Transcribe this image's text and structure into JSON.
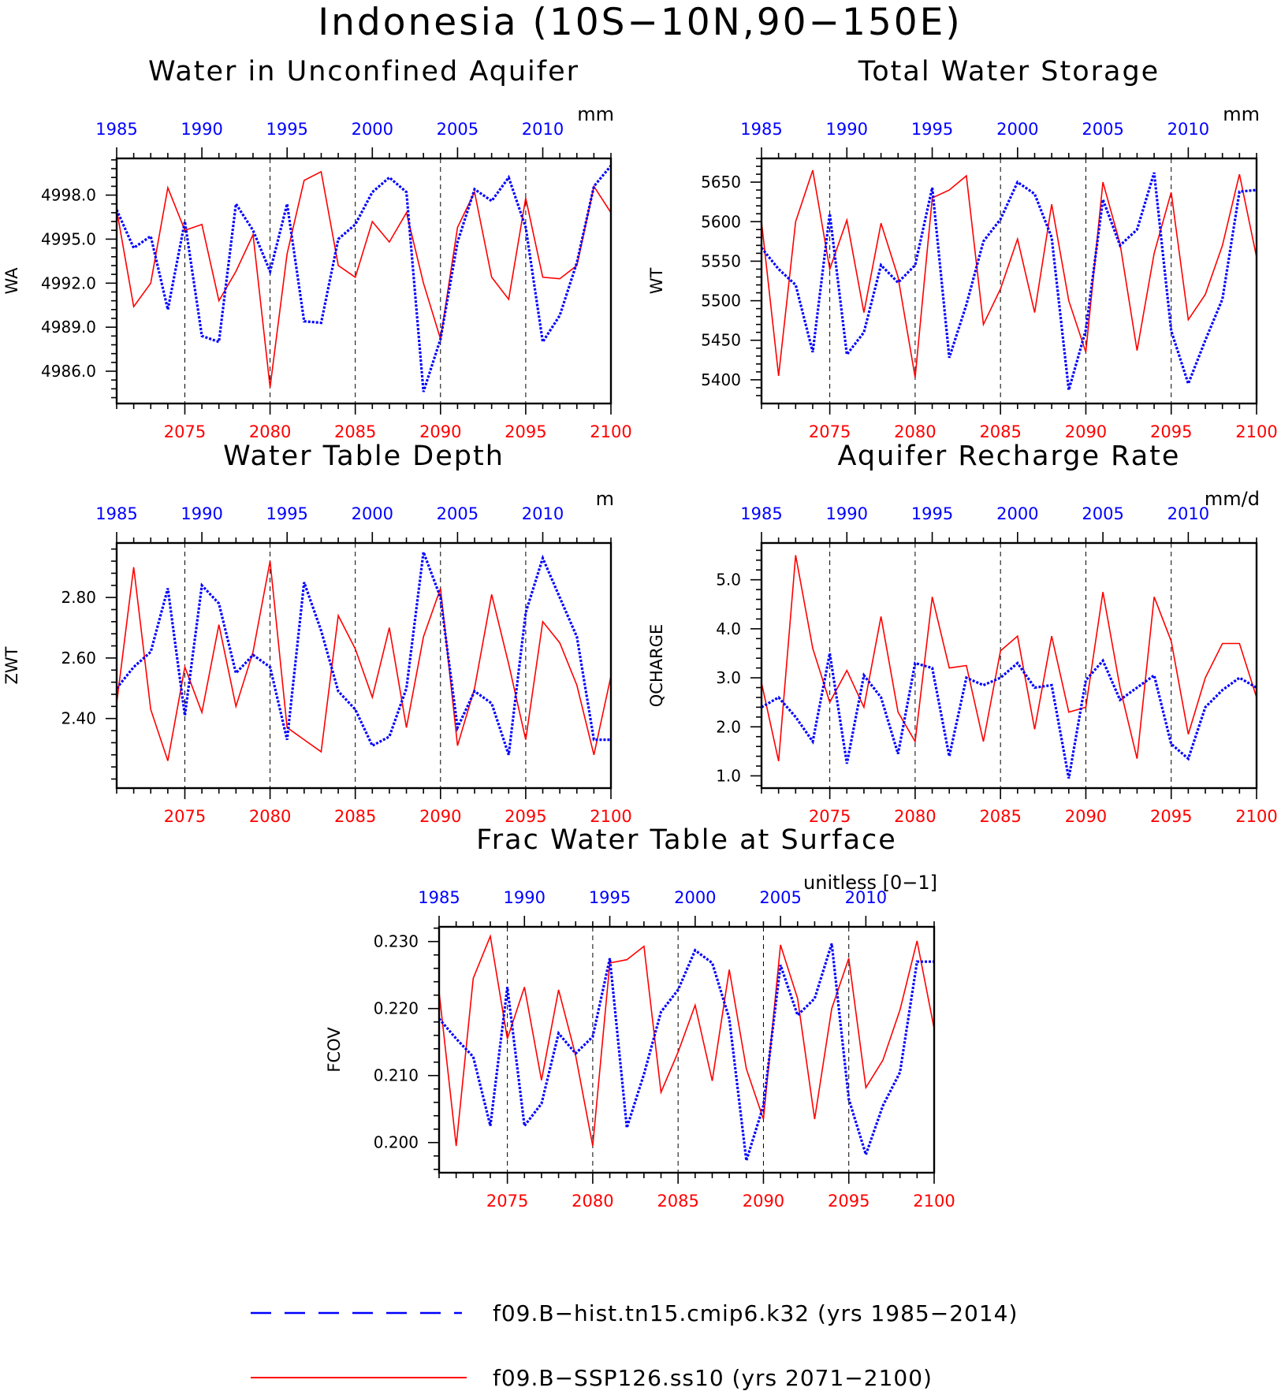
{
  "figure": {
    "title": "Indonesia (10S−10N,90−150E)"
  },
  "legend": {
    "items": [
      {
        "label": "f09.B−hist.tn15.cmip6.k32 (yrs 1985−2014)",
        "color": "#0000ff",
        "style": "dashed"
      },
      {
        "label": "f09.B−SSP126.ss10 (yrs 2071−2100)",
        "color": "#ff0000",
        "style": "solid"
      }
    ]
  },
  "chart_data": [
    {
      "type": "line",
      "title": "Water in Unconfined Aquifer",
      "ylabel": "WA",
      "units": "mm",
      "ylim": [
        4983.8,
        5000.5
      ],
      "yticks": [
        4986.0,
        4989.0,
        4992.0,
        4995.0,
        4998.0
      ],
      "ytick_labels": [
        "4986.0",
        "4989.0",
        "4992.0",
        "4995.0",
        "4998.0"
      ],
      "x_bottom": {
        "range": [
          2071,
          2100
        ],
        "ticks": [
          2075,
          2080,
          2085,
          2090,
          2095,
          2100
        ]
      },
      "x_top": {
        "range": [
          1985,
          2014
        ],
        "ticks": [
          1985,
          1990,
          1995,
          2000,
          2005,
          2010
        ]
      },
      "grid_x": [
        2075,
        2080,
        2085,
        2090,
        2095
      ],
      "series": [
        {
          "years": "2071−2100",
          "color": "#ff0000",
          "style": "solid",
          "values": [
            4997.0,
            4990.4,
            4992.0,
            4998.5,
            4995.6,
            4996.0,
            4990.8,
            4992.8,
            4995.3,
            4984.9,
            4994.0,
            4999.0,
            4999.6,
            4993.2,
            4992.4,
            4996.2,
            4994.8,
            4996.8,
            4992.0,
            4988.2,
            4995.8,
            4998.2,
            4992.4,
            4990.9,
            4997.8,
            4992.4,
            4992.3,
            4993.2,
            4998.6,
            4996.8
          ]
        },
        {
          "years": "1985−2014",
          "color": "#0000ff",
          "style": "dashed",
          "values": [
            4997.0,
            4994.4,
            4995.2,
            4990.2,
            4996.2,
            4988.4,
            4988.0,
            4997.4,
            4995.6,
            4992.8,
            4997.4,
            4989.4,
            4989.3,
            4995.0,
            4996.0,
            4998.2,
            4999.2,
            4998.2,
            4984.6,
            4988.2,
            4994.8,
            4998.4,
            4997.6,
            4999.2,
            4995.8,
            4988.0,
            4989.8,
            4993.4,
            4998.6,
            5000.0
          ]
        }
      ]
    },
    {
      "type": "line",
      "title": "Total Water Storage",
      "ylabel": "WT",
      "units": "mm",
      "ylim": [
        5370,
        5680
      ],
      "yticks": [
        5400,
        5450,
        5500,
        5550,
        5600,
        5650
      ],
      "ytick_labels": [
        "5400",
        "5450",
        "5500",
        "5550",
        "5600",
        "5650"
      ],
      "x_bottom": {
        "range": [
          2071,
          2100
        ],
        "ticks": [
          2075,
          2080,
          2085,
          2090,
          2095,
          2100
        ]
      },
      "x_top": {
        "range": [
          1985,
          2014
        ],
        "ticks": [
          1985,
          1990,
          1995,
          2000,
          2005,
          2010
        ]
      },
      "grid_x": [
        2075,
        2080,
        2085,
        2090,
        2095
      ],
      "series": [
        {
          "years": "2071−2100",
          "color": "#ff0000",
          "style": "solid",
          "values": [
            5600,
            5405,
            5600,
            5665,
            5540,
            5602,
            5485,
            5598,
            5530,
            5403,
            5630,
            5640,
            5658,
            5470,
            5515,
            5578,
            5485,
            5622,
            5500,
            5435,
            5650,
            5572,
            5437,
            5560,
            5637,
            5476,
            5508,
            5570,
            5660,
            5555
          ]
        },
        {
          "years": "1985−2014",
          "color": "#0000ff",
          "style": "dashed",
          "values": [
            5567,
            5540,
            5520,
            5435,
            5610,
            5432,
            5460,
            5545,
            5523,
            5545,
            5643,
            5428,
            5495,
            5575,
            5603,
            5650,
            5635,
            5580,
            5387,
            5463,
            5628,
            5570,
            5590,
            5662,
            5462,
            5395,
            5450,
            5502,
            5638,
            5640
          ]
        }
      ]
    },
    {
      "type": "line",
      "title": "Water Table Depth",
      "ylabel": "ZWT",
      "units": "m",
      "ylim": [
        2.17,
        2.98
      ],
      "yticks": [
        2.4,
        2.6,
        2.8
      ],
      "ytick_labels": [
        "2.40",
        "2.60",
        "2.80"
      ],
      "x_bottom": {
        "range": [
          2071,
          2100
        ],
        "ticks": [
          2075,
          2080,
          2085,
          2090,
          2095,
          2100
        ]
      },
      "x_top": {
        "range": [
          1985,
          2014
        ],
        "ticks": [
          1985,
          1990,
          1995,
          2000,
          2005,
          2010
        ]
      },
      "grid_x": [
        2075,
        2080,
        2085,
        2090,
        2095
      ],
      "series": [
        {
          "years": "2071−2100",
          "color": "#ff0000",
          "style": "solid",
          "values": [
            2.45,
            2.9,
            2.43,
            2.26,
            2.57,
            2.42,
            2.71,
            2.44,
            2.62,
            2.92,
            2.37,
            2.33,
            2.29,
            2.74,
            2.63,
            2.47,
            2.7,
            2.37,
            2.67,
            2.83,
            2.31,
            2.5,
            2.81,
            2.58,
            2.33,
            2.72,
            2.65,
            2.51,
            2.28,
            2.54
          ]
        },
        {
          "years": "1985−2014",
          "color": "#0000ff",
          "style": "dashed",
          "values": [
            2.5,
            2.57,
            2.62,
            2.83,
            2.41,
            2.84,
            2.78,
            2.55,
            2.61,
            2.57,
            2.33,
            2.85,
            2.69,
            2.49,
            2.43,
            2.31,
            2.34,
            2.5,
            2.95,
            2.8,
            2.37,
            2.49,
            2.45,
            2.28,
            2.75,
            2.93,
            2.8,
            2.67,
            2.33,
            2.33
          ]
        }
      ]
    },
    {
      "type": "line",
      "title": "Aquifer Recharge Rate",
      "ylabel": "QCHARGE",
      "units": "mm/d",
      "ylim": [
        0.75,
        5.75
      ],
      "yticks": [
        1.0,
        2.0,
        3.0,
        4.0,
        5.0
      ],
      "ytick_labels": [
        "1.0",
        "2.0",
        "3.0",
        "4.0",
        "5.0"
      ],
      "x_bottom": {
        "range": [
          2071,
          2100
        ],
        "ticks": [
          2075,
          2080,
          2085,
          2090,
          2095,
          2100
        ]
      },
      "x_top": {
        "range": [
          1985,
          2014
        ],
        "ticks": [
          1985,
          1990,
          1995,
          2000,
          2005,
          2010
        ]
      },
      "grid_x": [
        2075,
        2080,
        2085,
        2090,
        2095
      ],
      "series": [
        {
          "years": "2071−2100",
          "color": "#ff0000",
          "style": "solid",
          "values": [
            2.9,
            1.3,
            5.5,
            3.6,
            2.5,
            3.15,
            2.4,
            4.25,
            2.3,
            1.7,
            4.65,
            3.2,
            3.25,
            1.7,
            3.55,
            3.85,
            1.95,
            3.85,
            2.3,
            2.4,
            4.75,
            2.8,
            1.35,
            4.65,
            3.75,
            1.85,
            3.0,
            3.7,
            3.7,
            2.6
          ]
        },
        {
          "years": "1985−2014",
          "color": "#0000ff",
          "style": "dashed",
          "values": [
            2.4,
            2.6,
            2.2,
            1.7,
            3.5,
            1.25,
            3.05,
            2.6,
            1.45,
            3.3,
            3.2,
            1.4,
            3.0,
            2.85,
            3.0,
            3.3,
            2.8,
            2.85,
            0.95,
            2.95,
            3.35,
            2.55,
            2.8,
            3.05,
            1.65,
            1.35,
            2.4,
            2.75,
            3.0,
            2.8
          ]
        }
      ]
    },
    {
      "type": "line",
      "title": "Frac Water Table at Surface",
      "ylabel": "FCOV",
      "units": "unitless [0−1]",
      "ylim": [
        0.1955,
        0.2322
      ],
      "yticks": [
        0.2,
        0.21,
        0.22,
        0.23
      ],
      "ytick_labels": [
        "0.200",
        "0.210",
        "0.220",
        "0.230"
      ],
      "x_bottom": {
        "range": [
          2071,
          2100
        ],
        "ticks": [
          2075,
          2080,
          2085,
          2090,
          2095,
          2100
        ]
      },
      "x_top": {
        "range": [
          1985,
          2014
        ],
        "ticks": [
          1985,
          1990,
          1995,
          2000,
          2005,
          2010
        ]
      },
      "grid_x": [
        2075,
        2080,
        2085,
        2090,
        2095
      ],
      "series": [
        {
          "years": "2071−2100",
          "color": "#ff0000",
          "style": "solid",
          "values": [
            0.2225,
            0.1995,
            0.2245,
            0.2308,
            0.2155,
            0.2232,
            0.2093,
            0.2228,
            0.213,
            0.1995,
            0.2268,
            0.2273,
            0.2293,
            0.2075,
            0.2135,
            0.2205,
            0.2092,
            0.2258,
            0.211,
            0.2035,
            0.2295,
            0.2215,
            0.2035,
            0.22,
            0.2275,
            0.2082,
            0.2123,
            0.2198,
            0.2301,
            0.217
          ]
        },
        {
          "years": "1985−2014",
          "color": "#0000ff",
          "style": "dashed",
          "values": [
            0.2185,
            0.2155,
            0.2128,
            0.2025,
            0.2232,
            0.2025,
            0.2058,
            0.2163,
            0.2133,
            0.2158,
            0.2275,
            0.2022,
            0.2102,
            0.2195,
            0.2228,
            0.2287,
            0.2268,
            0.2185,
            0.1973,
            0.2055,
            0.2265,
            0.219,
            0.2215,
            0.2297,
            0.2065,
            0.1982,
            0.2055,
            0.2105,
            0.227,
            0.227
          ]
        }
      ]
    }
  ]
}
